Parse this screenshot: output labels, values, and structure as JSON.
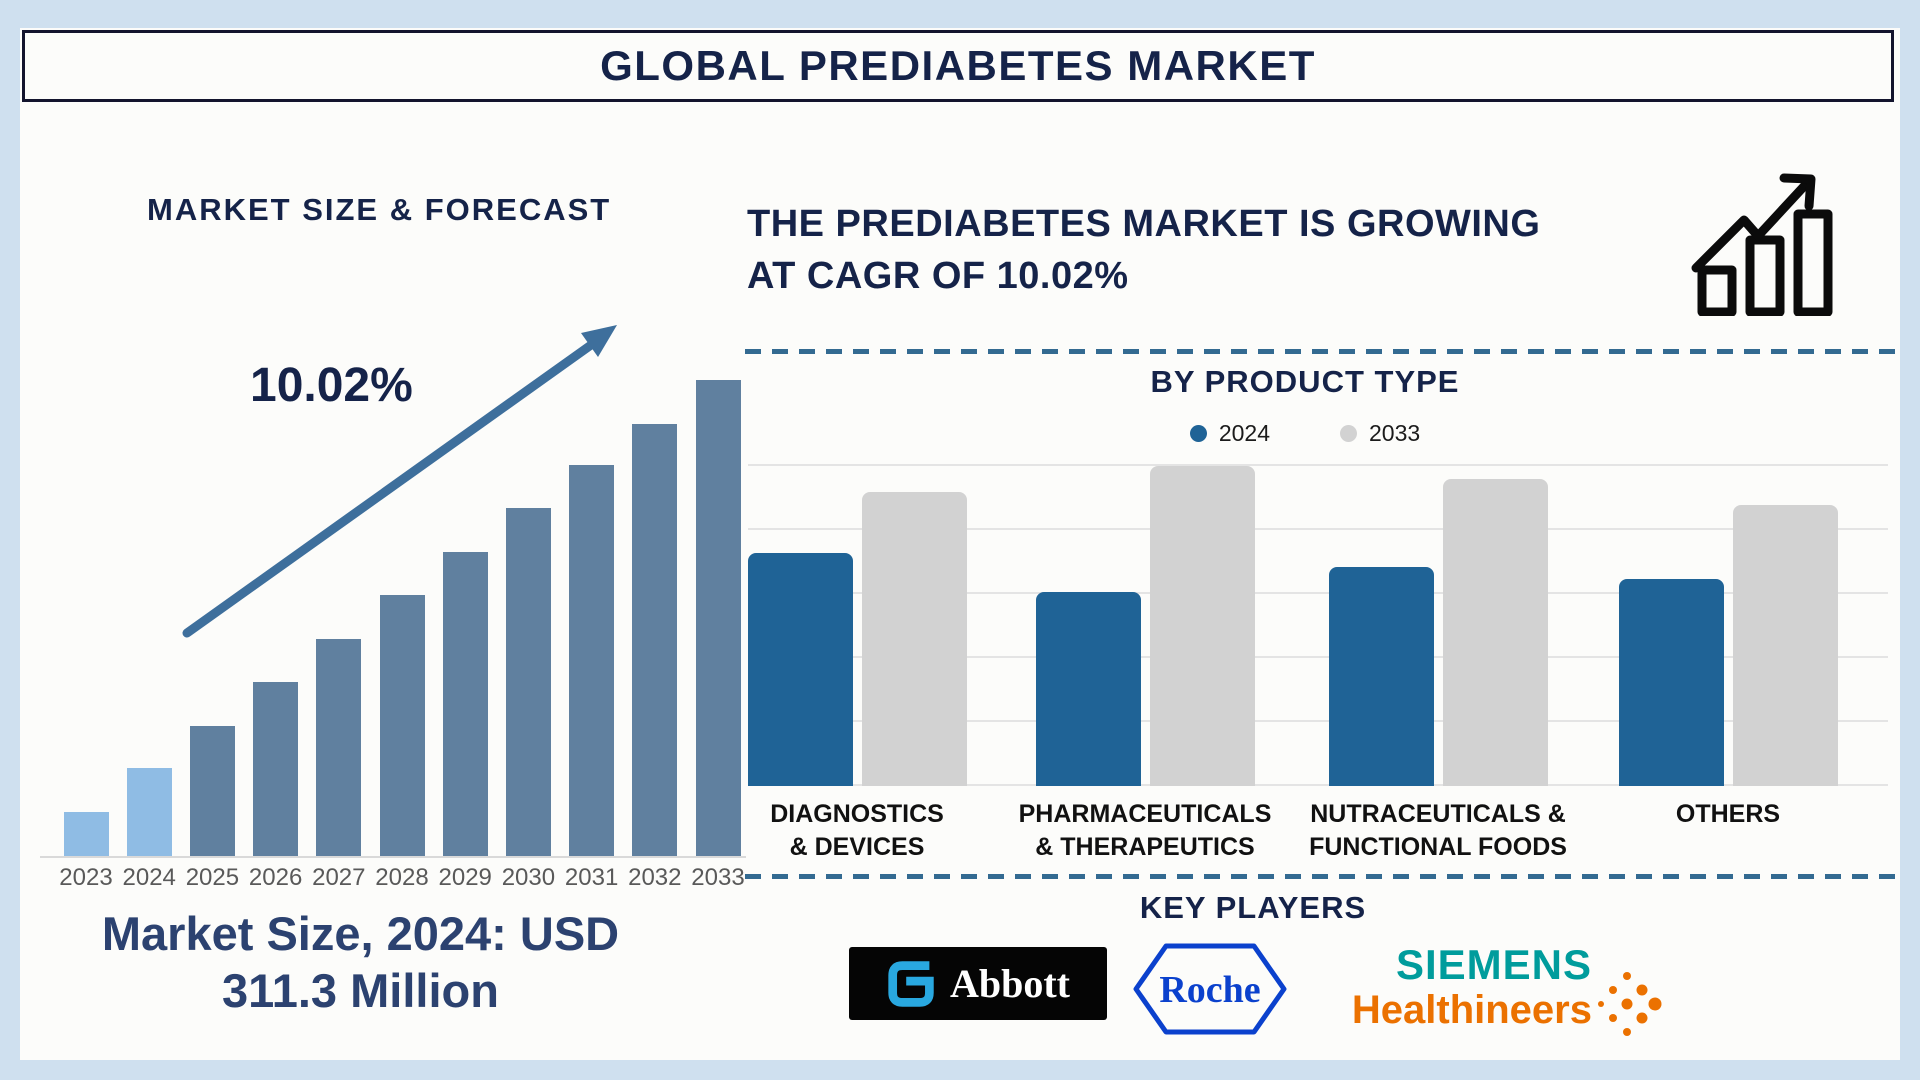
{
  "title": "GLOBAL PREDIABETES MARKET",
  "palette": {
    "page_bg": "#CFE0EF",
    "card_bg": "#FCFCFA",
    "navy": "#152349",
    "forecast_light": "#8FBCE4",
    "forecast_dark": "#60809F",
    "arrow_blue": "#3E6F9C",
    "product_2024": "#1F6396",
    "product_2033": "#D2D2D2",
    "gridline": "#E4E4E4",
    "dashed_line": "#336A91",
    "year_label": "#595959",
    "market_size_text": "#2C4270",
    "icon_black": "#0B0B0B",
    "abbott_blue": "#29A8E0",
    "roche_blue": "#0B41CD",
    "siemens_teal": "#009C9C",
    "siemens_orange": "#EB7100"
  },
  "icons": {
    "growth_icon": "bar-chart-with-rising-zigzag-arrow",
    "trend_arrow": "diagonal-up-right-arrow",
    "abbott_symbol": "abbott-stylized-a",
    "roche_symbol": "roche-hexagon",
    "siemens_dots": "orange-dot-cluster"
  },
  "market_forecast": {
    "heading": "MARKET SIZE & FORECAST",
    "cagr_annotation": "10.02%",
    "market_size_line1": "Market Size, 2024: USD",
    "market_size_line2": "311.3 Million"
  },
  "growth_banner": {
    "line1": "THE PREDIABETES MARKET IS GROWING",
    "line2": "AT CAGR OF 10.02%"
  },
  "product_section": {
    "heading": "BY PRODUCT TYPE",
    "legend": [
      {
        "label": "2024",
        "color": "#1F6396"
      },
      {
        "label": "2033",
        "color": "#D2D2D2"
      }
    ]
  },
  "key_players": {
    "heading": "KEY PLAYERS",
    "players": [
      {
        "name": "Abbott",
        "wordmark": "Abbott"
      },
      {
        "name": "Roche",
        "wordmark": "Roche"
      },
      {
        "name": "Siemens Healthineers",
        "wordmark_line1": "SIEMENS",
        "wordmark_line2": "Healthineers"
      }
    ]
  },
  "chart_data": [
    {
      "id": "market_size_forecast",
      "type": "bar",
      "title": "MARKET SIZE & FORECAST",
      "categories": [
        "2023",
        "2024",
        "2025",
        "2026",
        "2027",
        "2028",
        "2029",
        "2030",
        "2031",
        "2032",
        "2033"
      ],
      "values_pct_of_max": [
        9.6,
        18.8,
        27.6,
        36.8,
        45.8,
        55.0,
        64.0,
        73.2,
        82.2,
        90.8,
        100
      ],
      "labeled_values": {
        "market_size_2024_usd_million": 311.3,
        "cagr_pct": 10.02
      },
      "annotation": "10.02%",
      "bar_colors": {
        "2023": "#8FBCE4",
        "2024": "#8FBCE4",
        "2025_to_2033": "#60809F"
      },
      "xlabel": "",
      "ylabel": "",
      "grid": false,
      "legend_position": "none",
      "note": "No numeric axis shown; values are relative bar heights. Anchors: 2024 = USD 311.3M, CAGR 10.02%."
    },
    {
      "id": "by_product_type",
      "type": "bar",
      "title": "BY PRODUCT TYPE",
      "categories": [
        "DIAGNOSTICS & DEVICES",
        "PHARMACEUTICALS & THERAPEUTICS",
        "NUTRACEUTICALS & FUNCTIONAL FOODS",
        "OTHERS"
      ],
      "category_label_lines": [
        [
          "DIAGNOSTICS",
          "& DEVICES"
        ],
        [
          "PHARMACEUTICALS",
          "& THERAPEUTICS"
        ],
        [
          "NUTRACEUTICALS &",
          "FUNCTIONAL FOODS"
        ],
        [
          "OTHERS"
        ]
      ],
      "series": [
        {
          "name": "2024",
          "color": "#1F6396",
          "values_pct_of_plot": [
            72.4,
            60.2,
            68.0,
            64.3
          ]
        },
        {
          "name": "2033",
          "color": "#D2D2D2",
          "values_pct_of_plot": [
            91.3,
            99.4,
            95.3,
            87.3
          ]
        }
      ],
      "xlabel": "",
      "ylabel": "",
      "grid": true,
      "gridline_count": 6,
      "legend_position": "top",
      "note": "No numeric axis shown; values are percent of plot height estimated from pixels."
    }
  ]
}
